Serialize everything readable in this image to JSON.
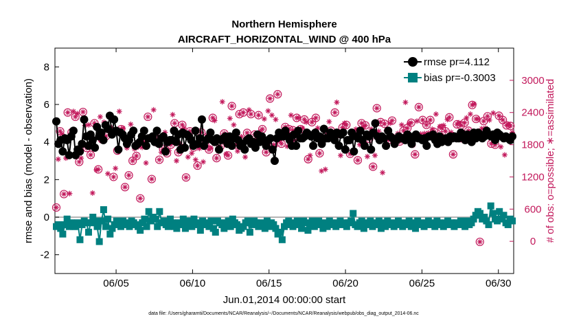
{
  "chart_data": {
    "type": "line",
    "title": "Northern Hemisphere",
    "subtitle": "AIRCRAFT_HORIZONTAL_WIND @ 400 hPa",
    "xlabel": "Jun.01,2014 00:00:00 start",
    "ylabel": "rmse and bias (model - observation)",
    "ylabel_right": "# of obs: o=possible; ∗=assimilated",
    "footnote": "data file: /Users/gharamti/Documents/NCAR/Reanalysis/~/Documents/NCAR/Reanalysis/webpub/obs_diag_output_2014-06.nc",
    "x_tick_labels": [
      "06/05",
      "06/10",
      "06/15",
      "06/20",
      "06/25",
      "06/30"
    ],
    "x_tick_days": [
      5,
      10,
      15,
      20,
      25,
      30
    ],
    "xlim_days": [
      1,
      31
    ],
    "ylim": [
      -3,
      9
    ],
    "y_ticks": [
      -2,
      0,
      2,
      4,
      6,
      8
    ],
    "ylim_right": [
      -600,
      3600
    ],
    "y_ticks_right": [
      0,
      600,
      1200,
      1800,
      2400,
      3000
    ],
    "grid": false,
    "legend_position": "top-right",
    "series": [
      {
        "name": "rmse pr=4.112",
        "color": "#000000",
        "values": [
          5.1,
          3.9,
          4.1,
          3.5,
          4.2,
          4.1,
          3.3,
          4.3,
          4.6,
          3.3,
          3.6,
          3.5,
          3.9,
          5.2,
          4.3,
          3.8,
          4.4,
          4.1,
          3.7,
          4.8,
          4.3,
          4.5,
          4.1,
          4.9,
          4.7,
          5.4,
          4.4,
          5.2,
          4.6,
          3.6,
          4.5,
          4.4,
          4.2,
          3.9,
          4.1,
          4.4,
          4.6,
          3.8,
          3.9,
          4.0,
          4.3,
          4.6,
          3.8,
          4.2,
          4.2,
          4.3,
          4.0,
          4.6,
          3.9,
          4.2,
          4.3,
          3.5,
          4.0,
          4.1,
          4.1,
          4.6,
          4.0,
          4.4,
          3.6,
          4.5,
          3.7,
          4.4,
          4.3,
          4.1,
          3.8,
          4.6,
          3.9,
          4.2,
          5.2,
          3.8,
          4.1,
          4.2,
          4.5,
          4.1,
          4.0,
          4.2,
          3.6,
          4.1,
          4.2,
          4.3,
          3.9,
          4.3,
          3.8,
          4.2,
          4.5,
          4.1,
          3.8,
          3.9,
          3.6,
          4.1,
          4.2,
          3.9,
          4.0,
          3.7,
          4.4,
          4.0,
          4.3,
          4.1,
          3.8,
          4.1,
          4.2,
          3.6,
          3.0,
          4.2,
          4.5,
          4.3,
          4.3,
          4.6,
          4.3,
          4.1,
          3.8,
          4.4,
          3.8,
          4.6,
          4.2,
          4.2,
          4.3,
          4.5,
          4.4,
          4.3,
          3.8,
          4.5,
          4.2,
          4.3,
          3.9,
          4.7,
          4.2,
          4.2,
          4.5,
          4.4,
          4.1,
          4.5,
          3.8,
          4.4,
          4.5,
          3.6,
          4.1,
          4.1,
          4.5,
          3.5,
          4.3,
          4.2,
          4.6,
          4.1,
          3.8,
          4.4,
          4.3,
          3.6,
          4.5,
          5.0,
          4.3,
          4.1,
          4.3,
          4.2,
          3.8,
          4.6,
          4.3,
          4.2,
          3.9,
          4.1,
          4.3,
          4.2,
          4.2,
          4.1,
          4.4,
          4.3,
          3.9,
          4.2,
          4.4,
          4.2,
          4.2,
          4.1,
          4.2,
          3.8,
          4.3,
          4.3,
          4.4,
          4.1,
          3.9,
          4.3,
          4.0,
          4.1,
          4.2,
          4.0,
          4.3,
          4.2,
          4.3,
          4.2,
          4.2,
          4.5,
          4.4,
          4.1,
          4.4,
          4.3,
          4.0,
          4.5,
          4.2,
          4.5,
          4.4,
          4.2,
          4.3,
          4.6,
          4.4,
          4.3,
          4.4,
          4.1,
          4.5,
          4.4,
          4.3,
          4.2,
          4.3,
          4.2,
          4.1,
          4.3
        ]
      },
      {
        "name": "bias pr=-0.3003",
        "color": "#008080",
        "values": [
          -0.5,
          -0.4,
          -0.6,
          -0.9,
          -0.4,
          -0.1,
          -0.5,
          -0.3,
          -0.5,
          -0.5,
          -0.3,
          -1.2,
          -0.4,
          -0.2,
          -0.3,
          -0.8,
          -0.3,
          0.0,
          -0.2,
          -0.5,
          -1.3,
          -0.2,
          0.4,
          -0.5,
          -0.1,
          -0.9,
          -0.6,
          -0.4,
          -0.2,
          -0.3,
          -0.5,
          -0.2,
          -0.4,
          -0.3,
          -0.5,
          -0.2,
          -0.3,
          -0.4,
          -0.5,
          -0.7,
          -0.3,
          -0.1,
          -0.5,
          0.3,
          -0.2,
          0.0,
          -0.1,
          -0.5,
          0.3,
          -0.3,
          -0.2,
          -0.4,
          -0.5,
          -0.1,
          -0.3,
          -0.5,
          -0.6,
          -0.3,
          -0.4,
          -0.1,
          -0.6,
          -0.3,
          -0.2,
          -0.5,
          -0.1,
          -0.3,
          -0.4,
          -0.7,
          -0.2,
          -0.4,
          -0.3,
          -0.5,
          -0.2,
          -0.6,
          -0.8,
          -0.2,
          -0.3,
          -0.4,
          -0.6,
          -0.3,
          -0.2,
          -0.5,
          -0.1,
          -0.3,
          -0.4,
          -0.7,
          -0.6,
          -0.5,
          -0.3,
          -0.2,
          -0.8,
          -0.4,
          -0.2,
          -0.3,
          -0.5,
          -0.3,
          -0.4,
          -0.6,
          -0.2,
          -0.5,
          -0.3,
          -0.4,
          -0.6,
          -0.9,
          -0.8,
          -1.2,
          -0.5,
          -0.3,
          -0.2,
          -0.4,
          -0.5,
          -0.3,
          -0.2,
          -0.4,
          -0.6,
          -0.2,
          -0.3,
          -0.7,
          -0.4,
          -0.2,
          -0.5,
          -0.3,
          -0.2,
          -0.4,
          -0.6,
          -0.3,
          -0.5,
          -0.2,
          -0.3,
          -0.4,
          -0.5,
          -0.3,
          -0.2,
          -0.4,
          -0.3,
          -0.5,
          -0.3,
          -0.2,
          0.2,
          -0.4,
          -0.5,
          -0.3,
          -0.2,
          -0.6,
          -0.3,
          -0.4,
          -0.2,
          -0.5,
          -0.3,
          -0.4,
          -0.2,
          -0.6,
          -0.3,
          -0.5,
          -0.2,
          -0.3,
          -0.4,
          -0.5,
          -0.3,
          -0.2,
          -0.4,
          -0.5,
          -0.3,
          -0.4,
          -0.2,
          -0.5,
          -0.3,
          -0.6,
          -0.2,
          -0.3,
          -0.4,
          -0.5,
          -0.3,
          -0.2,
          -0.4,
          -0.3,
          -0.5,
          -0.2,
          -0.3,
          -0.4,
          -0.5,
          -0.3,
          -0.2,
          -0.4,
          -0.3,
          -0.5,
          -0.3,
          -0.4,
          -0.2,
          -0.3,
          -0.5,
          -0.2,
          -0.4,
          -0.3,
          -0.1,
          0.1,
          0.3,
          0.2,
          -0.1,
          0.0,
          -0.2,
          -0.4,
          0.6,
          0.2,
          -0.1,
          -0.2,
          0.3,
          -0.1,
          0.1,
          -0.3,
          -0.4,
          -0.1,
          -0.2
        ]
      }
    ],
    "obs_possible": [
      630,
      1530,
      2050,
      2000,
      880,
      1550,
      2400,
      890,
      2030,
      2420,
      2320,
      2380,
      1480,
      1550,
      2410,
      2160,
      1740,
      2170,
      1610,
      900,
      2200,
      1330,
      1340,
      2320,
      1900,
      2220,
      1960,
      1260,
      2080,
      2120,
      1200,
      1360,
      1690,
      2420,
      2090,
      2110,
      1010,
      1740,
      1230,
      2180,
      1500,
      1720,
      1590,
      1760,
      800,
      1750,
      1850,
      1460,
      2320,
      1910,
      1160,
      2450,
      1940,
      1800,
      1520,
      1660,
      1720,
      2030,
      1640,
      1690,
      1800,
      2360,
      2200,
      1500,
      1660,
      1810,
      2170,
      2110,
      1190,
      1570,
      2050,
      1640,
      1750,
      1520,
      1410,
      1730,
      2030,
      1480,
      1800,
      1980,
      1710,
      1740,
      2300,
      2250,
      1550,
      1680,
      1770,
      2600,
      2010,
      1630,
      1600,
      2290,
      2520,
      2170,
      1800,
      1680,
      2370,
      1950,
      2400,
      1570,
      2020,
      2450,
      2370,
      1850,
      1990,
      1890,
      2350,
      2050,
      2090,
      2280,
      1660,
      2430,
      2660,
      2350,
      1800,
      2270,
      2740,
      1870,
      1820,
      2020,
      2130,
      1770,
      2090,
      2350,
      2070,
      1880,
      2300,
      2300,
      2090,
      2110,
      2270,
      2220,
      1530,
      1600,
      2220,
      2010,
      2300,
      2110,
      1640,
      1310,
      1910,
      1340,
      1990,
      2230,
      2060,
      1940,
      2400,
      2590,
      2000,
      1600,
      2120,
      2200,
      2170,
      1860,
      1630,
      2040,
      1970,
      2090,
      1510,
      1800,
      2200,
      2130,
      2160,
      1580,
      1910,
      2090,
      1390,
      1600,
      2480,
      2050,
      2220,
      1280,
      2190,
      2060,
      1890,
      2200,
      2250,
      1950,
      1880,
      2010,
      1860,
      2170,
      2060,
      2590,
      2110,
      2200,
      2210,
      1790,
      1620,
      2240,
      2500,
      2000,
      2260,
      2010,
      2170,
      2020,
      2260,
      2090,
      2040,
      2370,
      1890,
      2140,
      2110,
      2160,
      2050,
      2270,
      2310,
      2030,
      1620,
      1940,
      2180,
      2210,
      2160,
      1880,
      2210,
      2300,
      2060,
      2370,
      2540,
      2560,
      2280,
      2280,
      -10,
      2100,
      2240,
      2110,
      2330,
      2260,
      1820,
      2390,
      1800,
      2010,
      2340,
      1760,
      2260,
      1610,
      2160,
      2180,
      2150,
      2030
    ]
  }
}
